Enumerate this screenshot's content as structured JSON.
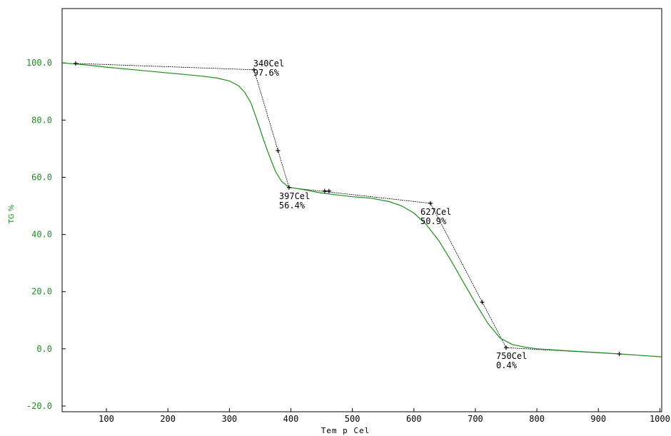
{
  "chart_data": {
    "type": "line",
    "xlabel": "Tem p Cel",
    "ylabel": "TG %",
    "xlim": [
      28,
      1003
    ],
    "ylim": [
      -22,
      119
    ],
    "x_ticks": [
      100,
      200,
      300,
      400,
      500,
      600,
      700,
      800,
      900,
      1000
    ],
    "x_tick_labels": [
      "100",
      "200",
      "300",
      "400",
      "500",
      "600",
      "700",
      "800",
      "900",
      "1000"
    ],
    "y_ticks": [
      100,
      80,
      60,
      40,
      20,
      0,
      -20
    ],
    "y_tick_labels": [
      "100.0",
      "80.0",
      "60.0",
      "40.0",
      "20.0",
      "0.0",
      "-20.0"
    ],
    "grid": false,
    "colors": {
      "curve": "#1e8c1e",
      "tangent": "#000000",
      "axis": "#000000",
      "y_ticks": "#1e8c1e"
    },
    "series": [
      {
        "x": [
          28,
          50,
          80,
          100,
          150,
          200,
          250,
          280,
          300,
          315,
          325,
          335,
          345,
          355,
          365,
          375,
          385,
          395,
          400,
          420,
          450,
          480,
          500,
          530,
          560,
          580,
          600,
          620,
          640,
          660,
          680,
          700,
          720,
          740,
          760,
          780,
          800,
          850,
          900,
          950,
          1003
        ],
        "y": [
          100,
          99.6,
          99,
          98.5,
          97.5,
          96.5,
          95.5,
          94.7,
          93.7,
          92,
          89.7,
          86,
          80,
          73.5,
          67.5,
          62,
          58.5,
          56.8,
          56.4,
          55.7,
          54.5,
          53.7,
          53.2,
          52.7,
          51.5,
          50,
          47.5,
          43.5,
          38,
          31,
          23.5,
          16,
          9,
          3.8,
          1.5,
          0.6,
          0,
          -0.7,
          -1.3,
          -2,
          -2.8
        ]
      }
    ],
    "tangent_lines": [
      {
        "x": [
          50,
          340
        ],
        "y": [
          99.8,
          97.6
        ]
      },
      {
        "x": [
          340,
          397
        ],
        "y": [
          97.6,
          56.4
        ]
      },
      {
        "x": [
          397,
          627
        ],
        "y": [
          56.4,
          50.9
        ]
      },
      {
        "x": [
          627,
          750
        ],
        "y": [
          50.9,
          0.4
        ]
      },
      {
        "x": [
          750,
          934
        ],
        "y": [
          0.4,
          -1.8
        ]
      }
    ],
    "markers": [
      {
        "x": 50,
        "y": 99.8
      },
      {
        "x": 340,
        "y": 97.6
      },
      {
        "x": 379,
        "y": 69.3
      },
      {
        "x": 397,
        "y": 56.4
      },
      {
        "x": 455,
        "y": 55.2
      },
      {
        "x": 462,
        "y": 55.2
      },
      {
        "x": 627,
        "y": 50.9
      },
      {
        "x": 711,
        "y": 16.3
      },
      {
        "x": 750,
        "y": 0.4
      },
      {
        "x": 934,
        "y": -1.8
      }
    ],
    "annotations": [
      {
        "x": 340,
        "y": 97.6,
        "temp": "340Cel",
        "value": "97.6%"
      },
      {
        "x": 397,
        "y": 56.4,
        "temp": "397Cel",
        "value": "56.4%"
      },
      {
        "x": 627,
        "y": 50.9,
        "temp": "627Cel",
        "value": "50.9%"
      },
      {
        "x": 750,
        "y": 0.4,
        "temp": "750Cel",
        "value": "0.4%"
      }
    ]
  }
}
